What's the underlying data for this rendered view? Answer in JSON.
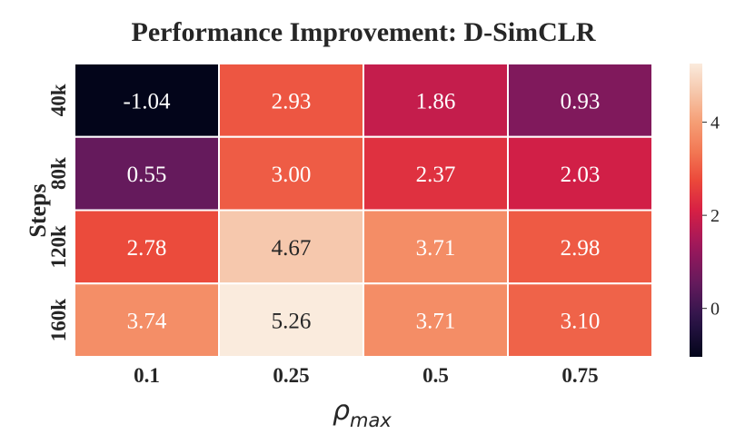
{
  "chart_data": {
    "type": "heatmap",
    "title": "Performance Improvement: D-SimCLR",
    "xlabel_main": "ρ",
    "xlabel_sub": "max",
    "ylabel": "Steps",
    "x_categories": [
      "0.1",
      "0.25",
      "0.5",
      "0.75"
    ],
    "y_categories": [
      "40k",
      "80k",
      "120k",
      "160k"
    ],
    "values": [
      [
        -1.04,
        2.93,
        1.86,
        0.93
      ],
      [
        0.55,
        3.0,
        2.37,
        2.03
      ],
      [
        2.78,
        4.67,
        3.71,
        2.98
      ],
      [
        3.74,
        5.26,
        3.71,
        3.1
      ]
    ],
    "value_labels": [
      [
        "-1.04",
        "2.93",
        "1.86",
        "0.93"
      ],
      [
        "0.55",
        "3.00",
        "2.37",
        "2.03"
      ],
      [
        "2.78",
        "4.67",
        "3.71",
        "2.98"
      ],
      [
        "3.74",
        "5.26",
        "3.71",
        "3.10"
      ]
    ],
    "colormap": "rocket",
    "vmin": -1.04,
    "vmax": 5.26,
    "colorbar_ticks": [
      0,
      2,
      4
    ],
    "colorbar_tick_labels": [
      "0",
      "2",
      "4"
    ]
  }
}
